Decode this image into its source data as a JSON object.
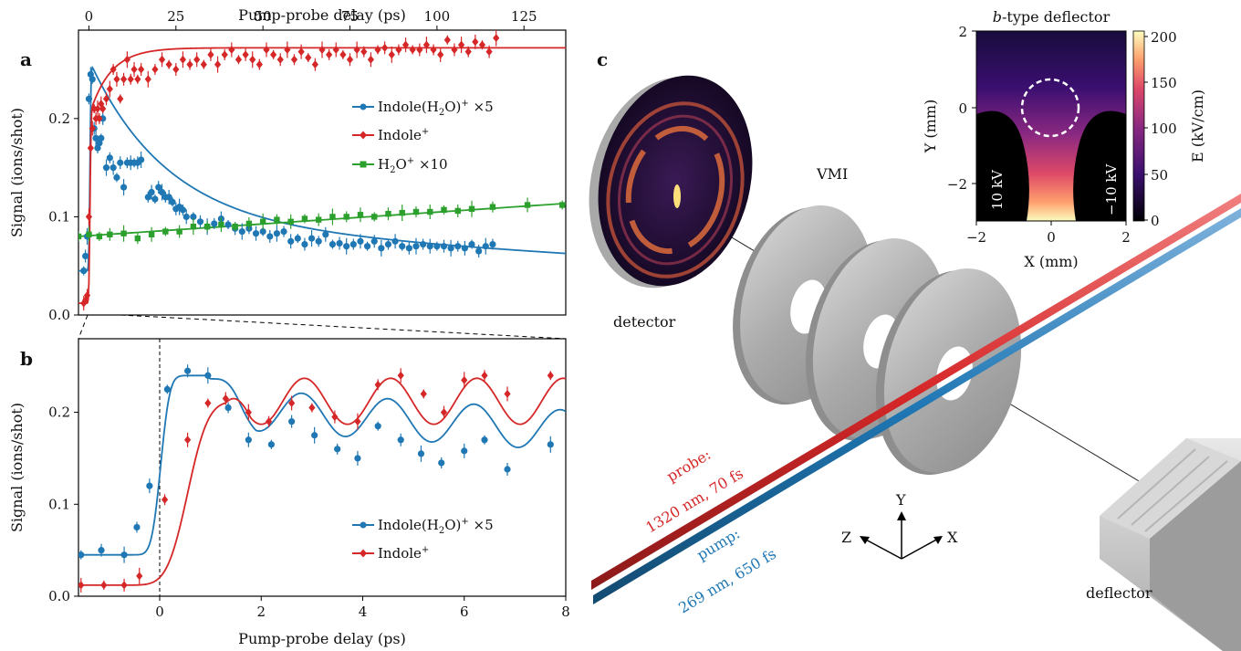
{
  "panel_labels": {
    "a": "a",
    "b": "b",
    "c": "c"
  },
  "chart_data": [
    {
      "type": "scatter",
      "panel": "a",
      "xlabel": "Pump-probe delay (ps)",
      "ylabel": "Signal (ions/shot)",
      "xlim": [
        -3,
        137
      ],
      "ylim": [
        0,
        0.29
      ],
      "xticks": [
        0,
        25,
        50,
        75,
        100,
        125
      ],
      "yticks": [
        0.0,
        0.1,
        0.2
      ],
      "xtick_labels": [
        "0",
        "25",
        "50",
        "75",
        "100",
        "125"
      ],
      "ytick_labels": [
        "0.0",
        "0.1",
        "0.2"
      ],
      "legend_position": "right",
      "series": [
        {
          "name": "Indole(H2O)⁺ ×5",
          "color": "#1f77b4",
          "marker": "circle",
          "x": [
            -1.5,
            -1,
            -0.5,
            0,
            0.5,
            1,
            1.5,
            2,
            2.5,
            3,
            3.5,
            4,
            5,
            6,
            7,
            8,
            9,
            10,
            11,
            12,
            13,
            14,
            15,
            17,
            18,
            19,
            20,
            21,
            22,
            23,
            24,
            25,
            26,
            27,
            28,
            30,
            32,
            34,
            36,
            38,
            40,
            42,
            44,
            46,
            48,
            50,
            52,
            54,
            56,
            58,
            60,
            62,
            64,
            66,
            68,
            70,
            72,
            74,
            76,
            78,
            80,
            82,
            84,
            86,
            88,
            90,
            92,
            94,
            96,
            98,
            100,
            102,
            104,
            106,
            108,
            110,
            112,
            114,
            116
          ],
          "y": [
            0.045,
            0.06,
            0.08,
            0.22,
            0.245,
            0.24,
            0.19,
            0.18,
            0.17,
            0.175,
            0.18,
            0.2,
            0.15,
            0.16,
            0.15,
            0.14,
            0.155,
            0.13,
            0.155,
            0.155,
            0.155,
            0.155,
            0.158,
            0.12,
            0.125,
            0.118,
            0.13,
            0.125,
            0.12,
            0.12,
            0.115,
            0.108,
            0.11,
            0.107,
            0.1,
            0.1,
            0.095,
            0.09,
            0.093,
            0.098,
            0.092,
            0.088,
            0.085,
            0.088,
            0.083,
            0.085,
            0.08,
            0.083,
            0.085,
            0.075,
            0.078,
            0.072,
            0.078,
            0.075,
            0.082,
            0.072,
            0.073,
            0.07,
            0.072,
            0.075,
            0.07,
            0.075,
            0.068,
            0.072,
            0.075,
            0.07,
            0.068,
            0.07,
            0.072,
            0.07,
            0.07,
            0.07,
            0.068,
            0.07,
            0.068,
            0.072,
            0.065,
            0.07,
            0.072
          ]
        },
        {
          "name": "Indole⁺",
          "color": "#d62728",
          "marker": "diamond",
          "x": [
            -1.5,
            -1,
            -0.5,
            0,
            0.5,
            1,
            1.5,
            2,
            2.5,
            3,
            3.5,
            4,
            5,
            6,
            7,
            8,
            9,
            10,
            11,
            12,
            13,
            14,
            15,
            17,
            19,
            21,
            23,
            25,
            27,
            29,
            31,
            33,
            35,
            37,
            39,
            41,
            43,
            45,
            47,
            49,
            51,
            53,
            55,
            57,
            59,
            61,
            63,
            65,
            67,
            69,
            71,
            73,
            75,
            77,
            79,
            81,
            83,
            85,
            87,
            89,
            91,
            93,
            95,
            97,
            99,
            101,
            103,
            105,
            107,
            109,
            111,
            113,
            115,
            117
          ],
          "y": [
            0.012,
            0.015,
            0.02,
            0.1,
            0.17,
            0.19,
            0.21,
            0.2,
            0.21,
            0.2,
            0.215,
            0.21,
            0.22,
            0.23,
            0.25,
            0.24,
            0.22,
            0.24,
            0.26,
            0.24,
            0.25,
            0.24,
            0.25,
            0.24,
            0.25,
            0.26,
            0.255,
            0.25,
            0.26,
            0.255,
            0.26,
            0.255,
            0.265,
            0.255,
            0.265,
            0.27,
            0.26,
            0.265,
            0.26,
            0.255,
            0.27,
            0.265,
            0.26,
            0.27,
            0.26,
            0.268,
            0.262,
            0.255,
            0.27,
            0.265,
            0.27,
            0.265,
            0.26,
            0.27,
            0.268,
            0.26,
            0.27,
            0.272,
            0.265,
            0.27,
            0.275,
            0.27,
            0.27,
            0.275,
            0.27,
            0.265,
            0.28,
            0.27,
            0.275,
            0.268,
            0.278,
            0.275,
            0.268,
            0.282
          ]
        },
        {
          "name": "H2O⁺ ×10",
          "color": "#2ca02c",
          "marker": "square",
          "x": [
            -3,
            0,
            3,
            6,
            10,
            14,
            18,
            22,
            26,
            30,
            34,
            38,
            42,
            46,
            50,
            54,
            58,
            62,
            66,
            70,
            74,
            78,
            82,
            86,
            90,
            94,
            98,
            102,
            106,
            110,
            116,
            126,
            136
          ],
          "y": [
            0.08,
            0.082,
            0.08,
            0.082,
            0.083,
            0.078,
            0.082,
            0.085,
            0.085,
            0.09,
            0.09,
            0.092,
            0.09,
            0.093,
            0.095,
            0.097,
            0.095,
            0.098,
            0.097,
            0.1,
            0.1,
            0.102,
            0.1,
            0.103,
            0.104,
            0.105,
            0.105,
            0.107,
            0.106,
            0.108,
            0.11,
            0.112,
            0.112
          ]
        }
      ]
    },
    {
      "type": "scatter",
      "panel": "b",
      "xlabel": "Pump-probe delay (ps)",
      "ylabel": "Signal (ions/shot)",
      "xlim": [
        -1.6,
        8
      ],
      "ylim": [
        0,
        0.28
      ],
      "xticks": [
        0,
        2,
        4,
        6,
        8
      ],
      "yticks": [
        0.0,
        0.1,
        0.2
      ],
      "xtick_labels": [
        "0",
        "2",
        "4",
        "6",
        "8"
      ],
      "ytick_labels": [
        "0.0",
        "0.1",
        "0.2"
      ],
      "legend_position": "bottom-right",
      "series": [
        {
          "name": "Indole(H2O)⁺ ×5",
          "color": "#1f77b4",
          "marker": "circle",
          "x": [
            -1.55,
            -1.15,
            -0.7,
            -0.45,
            -0.2,
            0.15,
            0.55,
            0.95,
            1.35,
            1.75,
            2.2,
            2.6,
            3.05,
            3.5,
            3.9,
            4.3,
            4.75,
            5.15,
            5.55,
            6,
            6.4,
            6.85,
            7.7
          ],
          "y": [
            0.045,
            0.05,
            0.045,
            0.075,
            0.12,
            0.225,
            0.245,
            0.24,
            0.205,
            0.17,
            0.165,
            0.19,
            0.175,
            0.16,
            0.15,
            0.185,
            0.17,
            0.155,
            0.145,
            0.158,
            0.17,
            0.138,
            0.165
          ]
        },
        {
          "name": "Indole⁺",
          "color": "#d62728",
          "marker": "diamond",
          "x": [
            -1.55,
            -1.1,
            -0.7,
            -0.4,
            0.1,
            0.55,
            0.95,
            1.3,
            1.75,
            2.15,
            2.6,
            3,
            3.45,
            3.9,
            4.3,
            4.75,
            5.2,
            5.6,
            6,
            6.4,
            6.85,
            7.7
          ],
          "y": [
            0.012,
            0.012,
            0.012,
            0.022,
            0.105,
            0.17,
            0.21,
            0.215,
            0.2,
            0.19,
            0.21,
            0.205,
            0.195,
            0.19,
            0.23,
            0.24,
            0.22,
            0.2,
            0.235,
            0.24,
            0.22,
            0.24
          ]
        }
      ]
    }
  ],
  "panel_c": {
    "detector_label": "detector",
    "vmi_label": "VMI",
    "deflector_label": "deflector",
    "probe_label_1": "probe:",
    "probe_label_2": "1320 nm, 70 fs",
    "pump_label_1": "pump:",
    "pump_label_2": "269 nm, 650 fs",
    "axis_y": "Y",
    "axis_z": "Z",
    "axis_x": "X",
    "probe_color": "#d62728",
    "pump_color": "#1f77b4",
    "inset": {
      "title_italic": "b",
      "title_rest": "-type deflector",
      "xlabel": "X (mm)",
      "ylabel": "Y (mm)",
      "cbar_label": "E (kV/cm)",
      "xtick_labels": [
        "−2",
        "0",
        "2"
      ],
      "ytick_labels": [
        "2",
        "0",
        "−2"
      ],
      "cbar_tick_labels": [
        "200",
        "150",
        "100",
        "50",
        "0"
      ],
      "electrode_left": "10 kV",
      "electrode_right": "−10 kV"
    }
  }
}
